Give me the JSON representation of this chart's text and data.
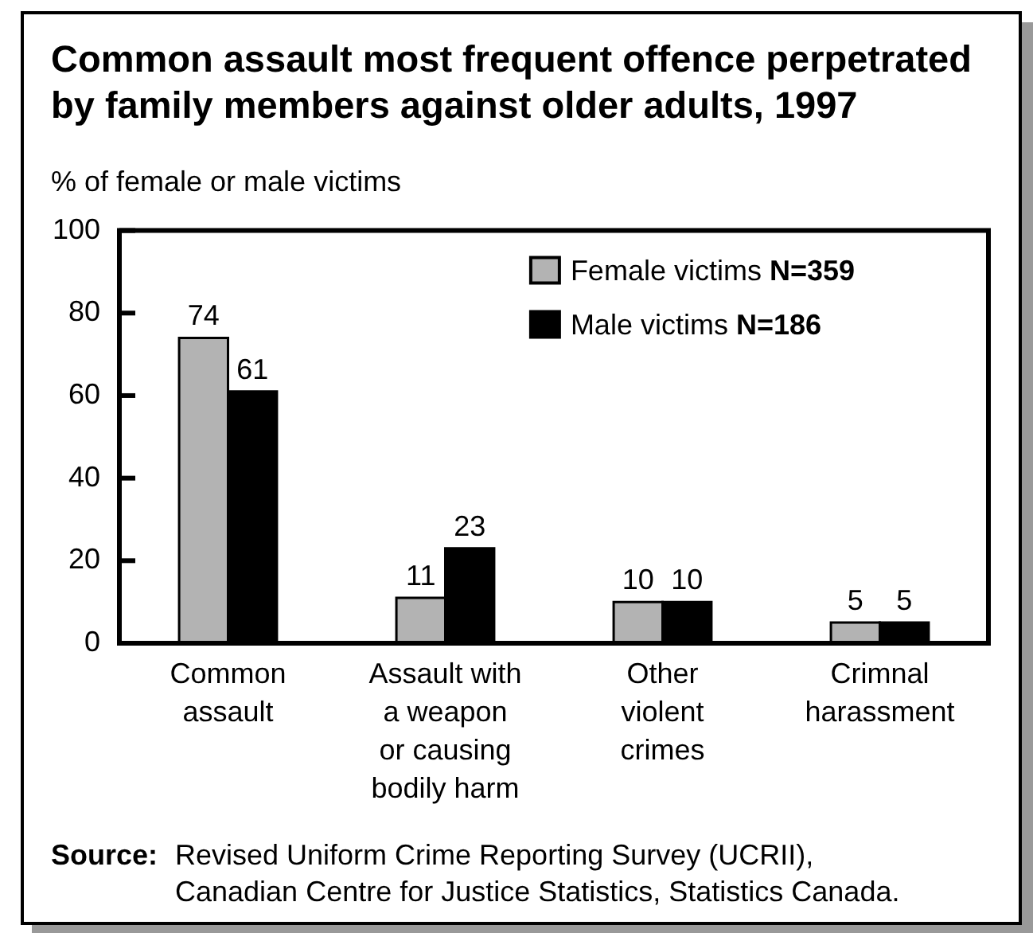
{
  "chart_data": {
    "type": "bar",
    "title": "Common assault most frequent offence perpetrated by family members against older adults, 1997",
    "ylabel": "% of female or male victims",
    "categories": [
      "Common\nassault",
      "Assault with\na weapon\nor causing\nbodily harm",
      "Other\nviolent\ncrimes",
      "Crimnal\nharassment"
    ],
    "series": [
      {
        "name": "Female victims N=359",
        "color": "#b3b3b3",
        "values": [
          74,
          11,
          10,
          5
        ]
      },
      {
        "name": "Male victims N=186",
        "color": "#000000",
        "values": [
          61,
          23,
          10,
          5
        ]
      }
    ],
    "ylim": [
      0,
      100
    ],
    "yticks": [
      0,
      20,
      40,
      60,
      80,
      100
    ],
    "grid": false,
    "legend": "top right",
    "data_labels": true,
    "annotations": [
      "Source: Revised Uniform Crime Reporting Survey (UCRII),\nCanadian Centre for Justice Statistics, Statistics Canada."
    ]
  }
}
